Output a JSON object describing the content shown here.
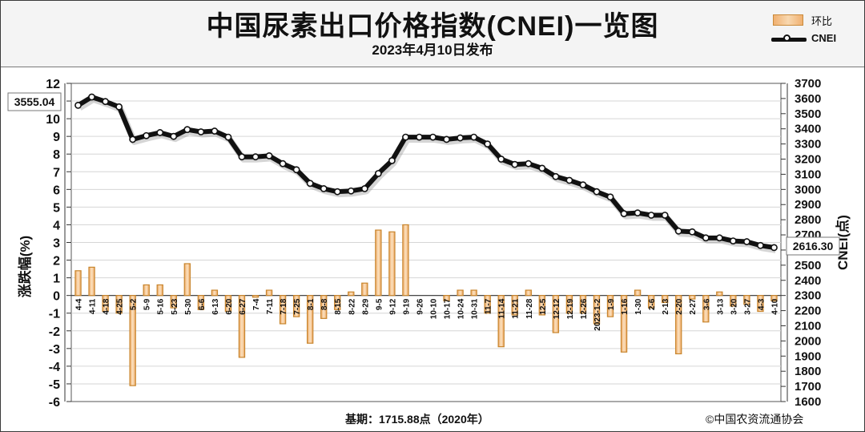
{
  "header": {
    "title": "中国尿素出口价格指数(CNEI)一览图",
    "subtitle": "2023年4月10日发布"
  },
  "legend": {
    "bar_label": "环比",
    "line_label": "CNEI"
  },
  "footer": {
    "base_text": "基期：1715.88点（2020年）",
    "copyright": "©中国农资流通协会"
  },
  "colors": {
    "bar_fill": "#f5c48a",
    "bar_stroke": "#c8862e",
    "line": "#111111",
    "grid": "#d6d6d6",
    "plot_bg": "#ffffff"
  },
  "chart_data": {
    "type": "bar+line",
    "categories": [
      "4-4",
      "4-11",
      "4-18",
      "4-25",
      "5-2",
      "5-9",
      "5-16",
      "5-23",
      "5-30",
      "6-6",
      "6-13",
      "6-20",
      "6-27",
      "7-4",
      "7-11",
      "7-18",
      "7-25",
      "8-1",
      "8-8",
      "8-15",
      "8-22",
      "8-29",
      "9-5",
      "9-12",
      "9-19",
      "9-26",
      "10-10",
      "10-17",
      "10-24",
      "10-31",
      "11-7",
      "11-14",
      "11-21",
      "11-28",
      "12-5",
      "12-12",
      "12-19",
      "12-26",
      "2023-1-2",
      "1-9",
      "1-16",
      "1-30",
      "2-6",
      "2-13",
      "2-20",
      "2-27",
      "3-6",
      "3-13",
      "3-20",
      "3-27",
      "4-3",
      "4-10"
    ],
    "series": [
      {
        "name": "环比",
        "axis": "left",
        "kind": "bar",
        "values": [
          1.4,
          1.6,
          -0.9,
          -1.0,
          -5.1,
          0.6,
          0.6,
          -0.7,
          1.8,
          -0.8,
          0.3,
          -0.9,
          -3.5,
          -0.1,
          0.3,
          -1.6,
          -1.2,
          -2.7,
          -1.3,
          -0.8,
          0.2,
          0.7,
          3.7,
          3.6,
          4.0,
          0.0,
          0.0,
          -0.3,
          0.3,
          0.3,
          -1.0,
          -2.9,
          -1.1,
          0.3,
          -1.1,
          -2.1,
          -1.0,
          -1.0,
          -1.6,
          -1.2,
          -3.2,
          0.3,
          -0.7,
          -0.4,
          -3.3,
          -0.2,
          -1.5,
          0.2,
          -0.6,
          -0.5,
          -0.9,
          -0.3
        ]
      },
      {
        "name": "CNEI",
        "axis": "right",
        "kind": "line",
        "values": [
          3555.04,
          3610,
          3580,
          3545,
          3330,
          3355,
          3375,
          3350,
          3395,
          3380,
          3385,
          3345,
          3215,
          3215,
          3222,
          3170,
          3130,
          3040,
          3005,
          2985,
          2990,
          3005,
          3105,
          3190,
          3345,
          3345,
          3345,
          3330,
          3340,
          3345,
          3300,
          3200,
          3165,
          3170,
          3140,
          3085,
          3060,
          3030,
          2985,
          2950,
          2840,
          2845,
          2830,
          2830,
          2725,
          2720,
          2680,
          2680,
          2660,
          2655,
          2630,
          2616.3
        ]
      }
    ],
    "y_left": {
      "label": "涨跌幅(%)",
      "min": -6,
      "max": 12,
      "step": 1
    },
    "y_right": {
      "label": "CNEI(点)",
      "min": 1600,
      "max": 3700,
      "step": 100
    },
    "annotations": {
      "first_value": "3555.04",
      "last_value": "2616.30"
    },
    "grid": true,
    "legend_position": "top-right"
  }
}
